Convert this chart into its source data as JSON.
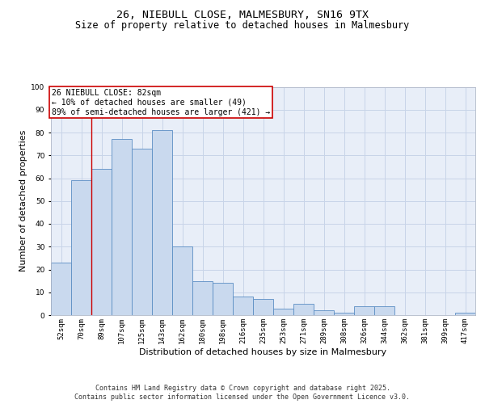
{
  "title_line1": "26, NIEBULL CLOSE, MALMESBURY, SN16 9TX",
  "title_line2": "Size of property relative to detached houses in Malmesbury",
  "xlabel": "Distribution of detached houses by size in Malmesbury",
  "ylabel": "Number of detached properties",
  "categories": [
    "52sqm",
    "70sqm",
    "89sqm",
    "107sqm",
    "125sqm",
    "143sqm",
    "162sqm",
    "180sqm",
    "198sqm",
    "216sqm",
    "235sqm",
    "253sqm",
    "271sqm",
    "289sqm",
    "308sqm",
    "326sqm",
    "344sqm",
    "362sqm",
    "381sqm",
    "399sqm",
    "417sqm"
  ],
  "values": [
    23,
    59,
    64,
    77,
    73,
    81,
    30,
    15,
    14,
    8,
    7,
    3,
    5,
    2,
    1,
    4,
    4,
    0,
    0,
    0,
    1
  ],
  "bar_color": "#c9d9ee",
  "bar_edge_color": "#5b8ec4",
  "grid_color": "#c8d4e8",
  "background_color": "#e8eef8",
  "annotation_text": "26 NIEBULL CLOSE: 82sqm\n← 10% of detached houses are smaller (49)\n89% of semi-detached houses are larger (421) →",
  "annotation_box_color": "#ffffff",
  "annotation_box_edge": "#cc0000",
  "vline_color": "#cc0000",
  "vline_x_index": 1,
  "ylim": [
    0,
    100
  ],
  "yticks": [
    0,
    10,
    20,
    30,
    40,
    50,
    60,
    70,
    80,
    90,
    100
  ],
  "footer_line1": "Contains HM Land Registry data © Crown copyright and database right 2025.",
  "footer_line2": "Contains public sector information licensed under the Open Government Licence v3.0.",
  "title_fontsize": 9.5,
  "subtitle_fontsize": 8.5,
  "axis_label_fontsize": 8,
  "tick_fontsize": 6.5,
  "annotation_fontsize": 7,
  "footer_fontsize": 6
}
